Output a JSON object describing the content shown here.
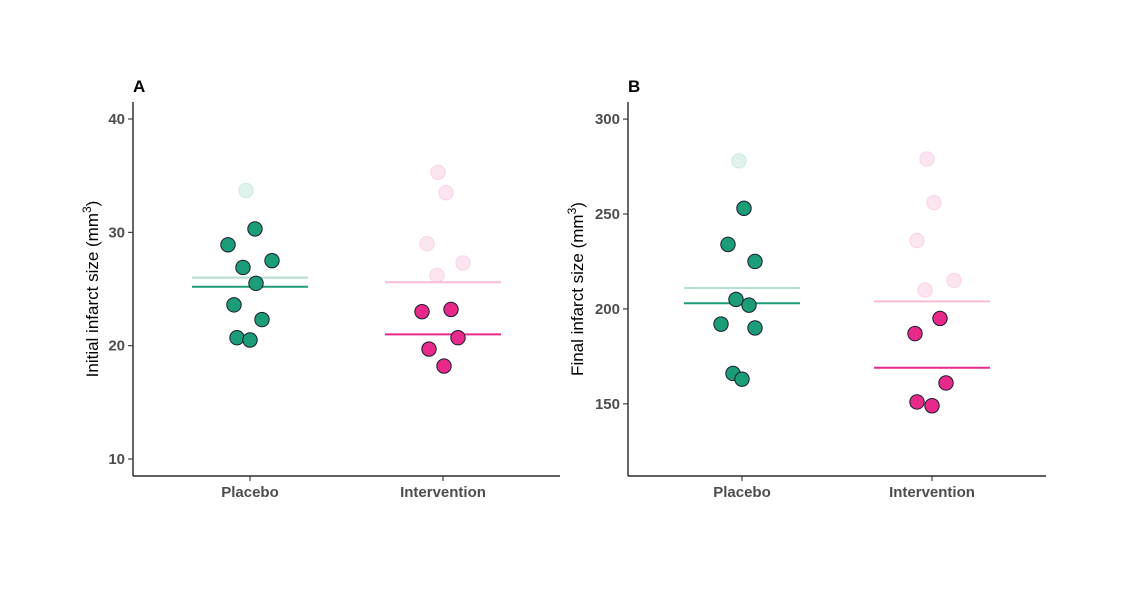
{
  "colors": {
    "placebo": "#1b9e77",
    "intervention": "#e7298a",
    "placebo_faded": "#b2dfcf",
    "intervention_faded": "#f7bcd9",
    "point_outline": "#1a1a2e"
  },
  "chart_data": [
    {
      "type": "scatter",
      "panel_label": "A",
      "ylabel": "Initial infarct size (mm",
      "ylabel_sup": "3",
      "ylabel_close": ")",
      "categories": [
        "Placebo",
        "Intervention"
      ],
      "ylim": [
        8.5,
        41.5
      ],
      "yticks": [
        10,
        20,
        30,
        40
      ],
      "series": [
        {
          "group": "Placebo",
          "points": [
            {
              "x": -0.22,
              "y": 28.9
            },
            {
              "x": -0.07,
              "y": 26.9
            },
            {
              "x": 0.05,
              "y": 30.3
            },
            {
              "x": 0.22,
              "y": 27.5
            },
            {
              "x": 0.06,
              "y": 25.5
            },
            {
              "x": -0.16,
              "y": 23.6
            },
            {
              "x": 0.12,
              "y": 22.3
            },
            {
              "x": -0.13,
              "y": 20.7
            },
            {
              "x": 0.0,
              "y": 20.5
            }
          ],
          "faded_points": [
            {
              "x": -0.04,
              "y": 33.7
            }
          ],
          "mean": 25.2,
          "faded_mean": 26.0
        },
        {
          "group": "Intervention",
          "points": [
            {
              "x": -0.21,
              "y": 23.0
            },
            {
              "x": 0.08,
              "y": 23.2
            },
            {
              "x": -0.14,
              "y": 19.7
            },
            {
              "x": 0.15,
              "y": 20.7
            },
            {
              "x": 0.01,
              "y": 18.2
            }
          ],
          "faded_points": [
            {
              "x": -0.05,
              "y": 35.3
            },
            {
              "x": 0.03,
              "y": 33.5
            },
            {
              "x": -0.16,
              "y": 29.0
            },
            {
              "x": 0.2,
              "y": 27.3
            },
            {
              "x": -0.06,
              "y": 26.2
            }
          ],
          "mean": 21.0,
          "faded_mean": 25.6
        }
      ]
    },
    {
      "type": "scatter",
      "panel_label": "B",
      "ylabel": "Final infarct size (mm",
      "ylabel_sup": "3",
      "ylabel_close": ")",
      "categories": [
        "Placebo",
        "Intervention"
      ],
      "ylim": [
        112,
        309
      ],
      "yticks": [
        150,
        200,
        250,
        300
      ],
      "series": [
        {
          "group": "Placebo",
          "points": [
            {
              "x": 0.02,
              "y": 253
            },
            {
              "x": -0.14,
              "y": 234
            },
            {
              "x": 0.13,
              "y": 225
            },
            {
              "x": -0.06,
              "y": 205
            },
            {
              "x": 0.07,
              "y": 202
            },
            {
              "x": -0.21,
              "y": 192
            },
            {
              "x": 0.13,
              "y": 190
            },
            {
              "x": -0.09,
              "y": 166
            },
            {
              "x": 0.0,
              "y": 163
            }
          ],
          "faded_points": [
            {
              "x": -0.03,
              "y": 278
            }
          ],
          "mean": 203,
          "faded_mean": 211
        },
        {
          "group": "Intervention",
          "points": [
            {
              "x": -0.17,
              "y": 187
            },
            {
              "x": 0.08,
              "y": 195
            },
            {
              "x": 0.14,
              "y": 161
            },
            {
              "x": -0.15,
              "y": 151
            },
            {
              "x": 0.0,
              "y": 149
            }
          ],
          "faded_points": [
            {
              "x": -0.05,
              "y": 279
            },
            {
              "x": 0.02,
              "y": 256
            },
            {
              "x": -0.15,
              "y": 236
            },
            {
              "x": 0.22,
              "y": 215
            },
            {
              "x": -0.07,
              "y": 210
            }
          ],
          "mean": 169,
          "faded_mean": 204
        }
      ]
    }
  ]
}
